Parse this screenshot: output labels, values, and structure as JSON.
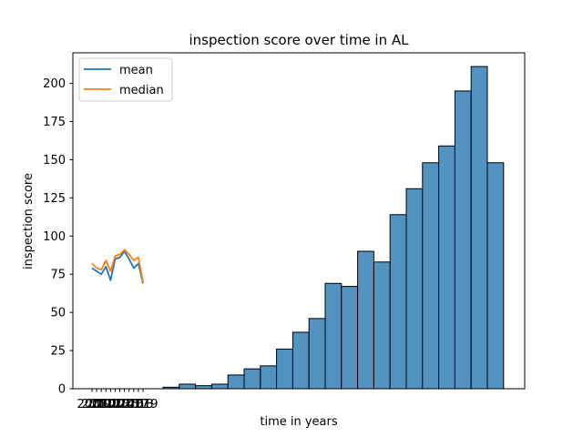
{
  "chart_data": {
    "type": "bar",
    "title": "inspection score over time in AL",
    "xlabel": "time in years",
    "ylabel": "inspection score",
    "ylim": [
      0,
      220
    ],
    "yticks": [
      0,
      25,
      50,
      75,
      100,
      125,
      150,
      175,
      200
    ],
    "xtick_labels": [
      "2008",
      "2009",
      "2010",
      "2011",
      "2012",
      "2013",
      "2014",
      "2015",
      "2016",
      "2017",
      "2018",
      "2019"
    ],
    "grid": false,
    "legend_position": "top-left",
    "histogram_values": [
      1,
      3,
      2,
      3,
      9,
      13,
      15,
      26,
      37,
      46,
      69,
      67,
      90,
      83,
      114,
      131,
      148,
      159,
      195,
      211,
      148
    ],
    "series": [
      {
        "name": "mean",
        "color": "#1f77b4",
        "x": [
          2008,
          2009,
          2010,
          2011,
          2012,
          2013,
          2014,
          2015,
          2016,
          2017,
          2018,
          2019
        ],
        "values": [
          79,
          77,
          75,
          80,
          71,
          85,
          86,
          90,
          85,
          79,
          82,
          69
        ]
      },
      {
        "name": "median",
        "color": "#ff7f0e",
        "x": [
          2008,
          2009,
          2010,
          2011,
          2012,
          2013,
          2014,
          2015,
          2016,
          2017,
          2018,
          2019
        ],
        "values": [
          82,
          79,
          78,
          84,
          77,
          87,
          88,
          91,
          88,
          84,
          86,
          70
        ]
      }
    ],
    "bar_color": "#4c8fc0",
    "bar_edge_color": "#000000"
  }
}
